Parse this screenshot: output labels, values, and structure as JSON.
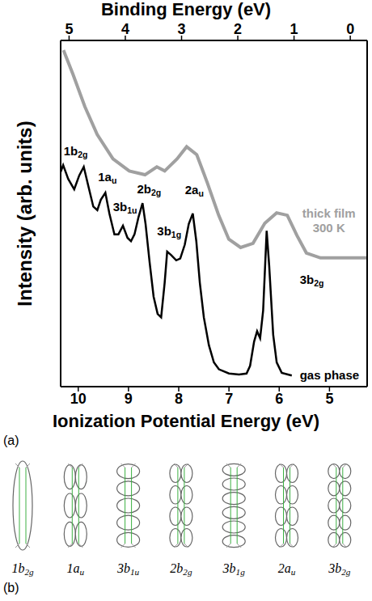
{
  "chart_data": {
    "type": "line",
    "panel": "(a)",
    "x_label": "Ionization Potential Energy (eV)",
    "x2_label": "Binding Energy (eV)",
    "y_label": "Intensity (arb. units)",
    "xlim": [
      10.35,
      4.25
    ],
    "xticks": [
      10,
      9,
      8,
      7,
      6,
      5
    ],
    "x2lim": [
      5.15,
      -0.3
    ],
    "x2ticks": [
      5,
      4,
      3,
      2,
      1,
      0
    ],
    "ylim": [
      0,
      100
    ],
    "yticks": [],
    "tick_labels": "x",
    "series": [
      {
        "name": "gas phase",
        "color": "#000000",
        "x": [
          10.35,
          10.3,
          10.2,
          10.08,
          9.98,
          9.89,
          9.8,
          9.7,
          9.62,
          9.55,
          9.46,
          9.38,
          9.28,
          9.2,
          9.11,
          9.02,
          8.95,
          8.88,
          8.8,
          8.72,
          8.66,
          8.58,
          8.5,
          8.42,
          8.35,
          8.28,
          8.23,
          8.15,
          8.05,
          7.97,
          7.88,
          7.8,
          7.72,
          7.65,
          7.58,
          7.5,
          7.4,
          7.3,
          7.2,
          7.0,
          6.8,
          6.65,
          6.58,
          6.5,
          6.44,
          6.38,
          6.32,
          6.25,
          6.2,
          6.12,
          6.05,
          5.95,
          5.75
        ],
        "values": [
          62,
          64,
          60,
          57,
          61,
          63.5,
          58,
          52,
          51,
          54,
          56,
          50,
          44,
          44,
          46.5,
          43,
          42,
          44,
          49,
          53,
          47,
          36,
          26,
          21,
          20,
          30,
          39,
          38,
          36.5,
          37,
          41,
          47,
          50,
          42,
          30,
          20,
          12,
          7,
          5,
          3.8,
          3.5,
          3.8,
          6,
          13,
          16,
          14,
          22,
          45,
          35,
          15,
          7,
          4,
          3.2
        ],
        "label_x": 5.0,
        "label_y": 3.3
      },
      {
        "name": "thick film\n300 K",
        "color": "#a0a0a0",
        "axis": "x2",
        "x": [
          5.1,
          4.93,
          4.72,
          4.5,
          4.22,
          3.93,
          3.65,
          3.44,
          3.3,
          3.08,
          2.91,
          2.73,
          2.54,
          2.34,
          2.16,
          1.95,
          1.73,
          1.52,
          1.31,
          1.12,
          0.95,
          0.78,
          0.53,
          0.1,
          -0.3
        ],
        "values": [
          97.2,
          90.2,
          80.9,
          72.8,
          65.8,
          62.3,
          61.2,
          63.5,
          62.3,
          65.8,
          69.3,
          67,
          58.8,
          49.5,
          42.6,
          40.2,
          41.4,
          47.2,
          50.2,
          49.5,
          43.7,
          38.6,
          37.2,
          37.2,
          37.2
        ],
        "label_x": 0.38,
        "label_y": 47.9
      }
    ],
    "annotations": [
      {
        "text": "1b",
        "subscript": "2g",
        "x": 10.05,
        "y": 68
      },
      {
        "text": "1a",
        "subscript": "u",
        "x": 9.42,
        "y": 60.7
      },
      {
        "text": "3b",
        "subscript": "1u",
        "x": 9.07,
        "y": 52
      },
      {
        "text": "2b",
        "subscript": "2g",
        "x": 8.59,
        "y": 57.2
      },
      {
        "text": "3b",
        "subscript": "1g",
        "x": 8.19,
        "y": 45
      },
      {
        "text": "2a",
        "subscript": "u",
        "x": 7.69,
        "y": 57
      },
      {
        "text": "3b",
        "subscript": "2g",
        "x": 5.35,
        "y": 31
      }
    ]
  },
  "orbitals": {
    "panel": "(b)",
    "labels": [
      {
        "text": "1b",
        "subscript": "2g"
      },
      {
        "text": "1a",
        "subscript": "u"
      },
      {
        "text": "3b",
        "subscript": "1u"
      },
      {
        "text": "2b",
        "subscript": "2g"
      },
      {
        "text": "3b",
        "subscript": "1g"
      },
      {
        "text": "2a",
        "subscript": "u"
      },
      {
        "text": "3b",
        "subscript": "2g"
      }
    ]
  }
}
